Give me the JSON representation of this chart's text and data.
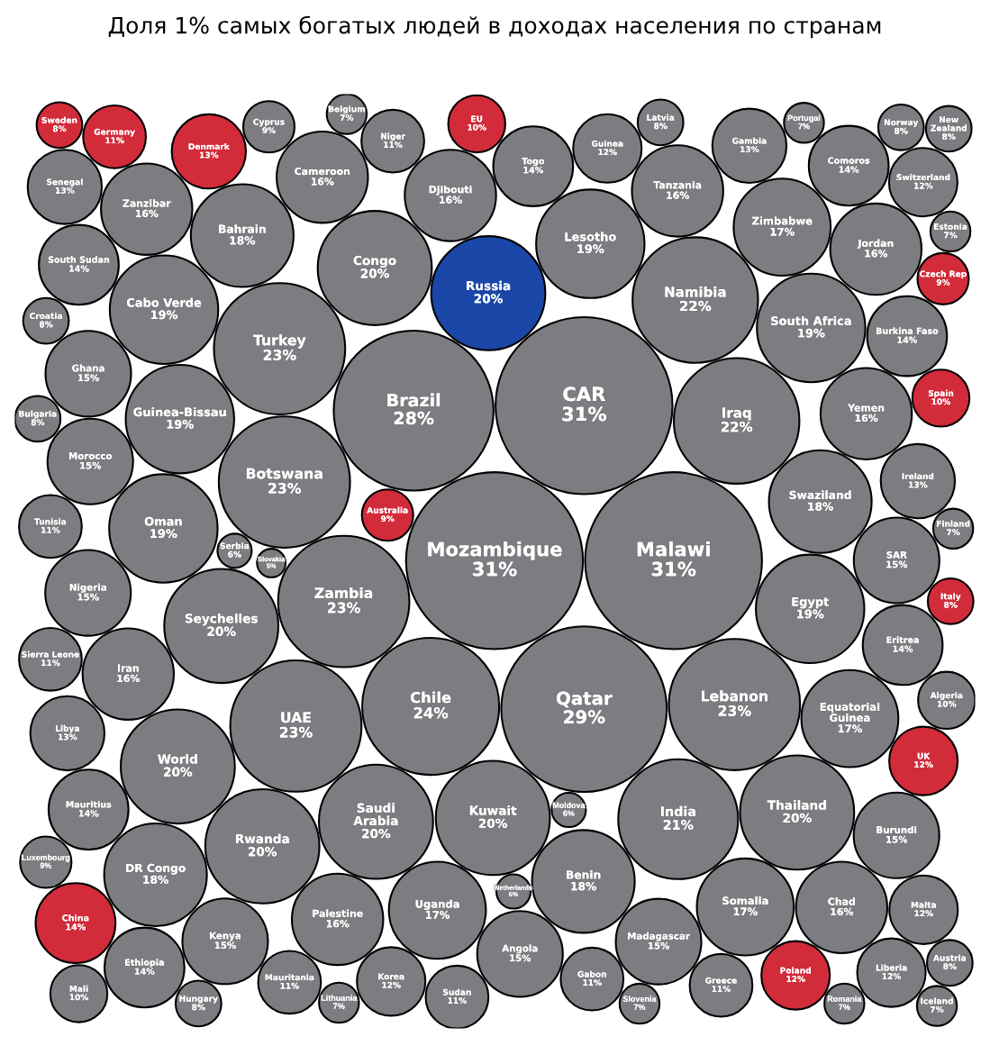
{
  "chart_data": {
    "type": "other",
    "title": "Доля 1% самых богатых людей в доходах населения по странам",
    "categories": [
      "Guinea-Bissau",
      "Norway",
      "Zambia",
      "Togo",
      "Mauritius",
      "Swaziland",
      "Madagascar",
      "Guinea",
      "Chad",
      "Kuwait",
      "Moldova",
      "Zanzibar",
      "Croatia",
      "Australia",
      "Iraq",
      "Eritrea",
      "Saudi\nArabia",
      "Sweden",
      "Iran",
      "Kenya",
      "SAR",
      "Latvia",
      "Mozambique",
      "UAE",
      "Zimbabwe",
      "Burundi",
      "New\nZealand",
      "Qatar",
      "Cyprus",
      "Seychelles",
      "Spain",
      "Denmark",
      "Mali",
      "Egypt",
      "Portugal",
      "EU",
      "Italy",
      "Lithuania",
      "Gabon",
      "Morocco",
      "Botswana",
      "Niger",
      "Mauritania",
      "Poland",
      "Russia",
      "Benin",
      "Palestine",
      "Chile",
      "Yemen",
      "Comoros",
      "South Africa",
      "Bahrain",
      "Malawi",
      "Rwanda",
      "Burkina Faso",
      "UK",
      "Ireland",
      "Czech Rep",
      "Libya",
      "Greece",
      "Slovenia",
      "Slovakia",
      "Estonia",
      "South Sudan",
      "Congo",
      "Germany",
      "Lesotho",
      "Oman",
      "Thailand",
      "Turkey",
      "Djibouti",
      "Equatorial\nGuinea",
      "Angola",
      "Luxembourg",
      "Tanzania",
      "Tunisia",
      "Gambia",
      "Austria",
      "Romania",
      "Nigeria",
      "Jordan",
      "Finland",
      "Senegal",
      "DR Congo",
      "World",
      "Lebanon",
      "Belgium",
      "Ethiopia",
      "Switzerland",
      "Somalia",
      "CAR",
      "Brazil",
      "Bulgaria",
      "Serbia",
      "China",
      "Netherlands",
      "Sierra Leone",
      "Hungary",
      "India",
      "Namibia",
      "Ghana",
      "Uganda",
      "Cabo Verde",
      "Malta",
      "Iceland",
      "Algeria",
      "Cameroon",
      "Liberia",
      "Sudan",
      "Korea"
    ],
    "values": [
      19,
      8,
      23,
      14,
      14,
      18,
      15,
      12,
      16,
      20,
      6,
      16,
      8,
      9,
      22,
      14,
      20,
      8,
      16,
      15,
      15,
      8,
      31,
      23,
      17,
      15,
      8,
      29,
      9,
      20,
      10,
      13,
      10,
      19,
      7,
      10,
      8,
      7,
      11,
      15,
      23,
      11,
      11,
      12,
      20,
      18,
      16,
      24,
      16,
      14,
      19,
      18,
      31,
      20,
      14,
      12,
      13,
      9,
      13,
      11,
      7,
      5,
      7,
      14,
      20,
      11,
      19,
      19,
      20,
      23,
      16,
      17,
      15,
      9,
      16,
      11,
      13,
      8,
      7,
      15,
      16,
      7,
      13,
      18,
      20,
      23,
      7,
      14,
      12,
      17,
      31,
      28,
      8,
      6,
      14,
      6,
      11,
      8,
      21,
      22,
      15,
      17,
      19,
      12,
      7,
      10,
      16,
      12,
      11,
      12
    ],
    "value_labels": [
      "19%",
      "8%",
      "23%",
      "14%",
      "14%",
      "18%",
      "15%",
      "12%",
      "16%",
      "20%",
      "6%",
      "16%",
      "8%",
      "9%",
      "22%",
      "14%",
      "20%",
      "8%",
      "16%",
      "15%",
      "15%",
      "8%",
      "31%",
      "23%",
      "17%",
      "15%",
      "8%",
      "29%",
      "9%",
      "20%",
      "10%",
      "13%",
      "10%",
      "19%",
      "7%",
      "10%",
      "8%",
      "7%",
      "11%",
      "15%",
      "23%",
      "11%",
      "11%",
      "12%",
      "20%",
      "18%",
      "16%",
      "24%",
      "16%",
      "14%",
      "19%",
      "18%",
      "31%",
      "20%",
      "14%",
      "12%",
      "13%",
      "9%",
      "13%",
      "11%",
      "7%",
      "5%",
      "7%",
      "14%",
      "20%",
      "11%",
      "19%",
      "19%",
      "20%",
      "23%",
      "16%",
      "17%",
      "15%",
      "9%",
      "16%",
      "11%",
      "13%",
      "8%",
      "7%",
      "15%",
      "16%",
      "7%",
      "13%",
      "18%",
      "20%",
      "23%",
      "7%",
      "14%",
      "12%",
      "17%",
      "31%",
      "28%",
      "8%",
      "6%",
      "14%",
      "6%",
      "11%",
      "8%",
      "21%",
      "22%",
      "15%",
      "17%",
      "19%",
      "12%",
      "7%",
      "10%",
      "16%",
      "12%",
      "11%",
      "12%"
    ],
    "colors": [
      "#7b7d80",
      "#7b7d80",
      "#7b7d80",
      "#7b7d80",
      "#7b7d80",
      "#7b7d80",
      "#7b7d80",
      "#7b7d80",
      "#7b7d80",
      "#7b7d80",
      "#7b7d80",
      "#7b7d80",
      "#7b7d80",
      "#d22b3a",
      "#7b7d80",
      "#7b7d80",
      "#7b7d80",
      "#d22b3a",
      "#7b7d80",
      "#7b7d80",
      "#7b7d80",
      "#7b7d80",
      "#7b7d80",
      "#7b7d80",
      "#7b7d80",
      "#7b7d80",
      "#7b7d80",
      "#7b7d80",
      "#7b7d80",
      "#7b7d80",
      "#d22b3a",
      "#d22b3a",
      "#7b7d80",
      "#7b7d80",
      "#7b7d80",
      "#d22b3a",
      "#d22b3a",
      "#7b7d80",
      "#7b7d80",
      "#7b7d80",
      "#7b7d80",
      "#7b7d80",
      "#7b7d80",
      "#d22b3a",
      "#1a47a8",
      "#7b7d80",
      "#7b7d80",
      "#7b7d80",
      "#7b7d80",
      "#7b7d80",
      "#7b7d80",
      "#7b7d80",
      "#7b7d80",
      "#7b7d80",
      "#7b7d80",
      "#d22b3a",
      "#7b7d80",
      "#d22b3a",
      "#7b7d80",
      "#7b7d80",
      "#7b7d80",
      "#7b7d80",
      "#7b7d80",
      "#7b7d80",
      "#7b7d80",
      "#d22b3a",
      "#7b7d80",
      "#7b7d80",
      "#7b7d80",
      "#7b7d80",
      "#7b7d80",
      "#7b7d80",
      "#7b7d80",
      "#7b7d80",
      "#7b7d80",
      "#7b7d80",
      "#7b7d80",
      "#7b7d80",
      "#7b7d80",
      "#7b7d80",
      "#7b7d80",
      "#7b7d80",
      "#7b7d80",
      "#7b7d80",
      "#7b7d80",
      "#7b7d80",
      "#7b7d80",
      "#7b7d80",
      "#7b7d80",
      "#7b7d80",
      "#7b7d80",
      "#7b7d80",
      "#7b7d80",
      "#7b7d80",
      "#d22b3a",
      "#7b7d80",
      "#7b7d80",
      "#7b7d80",
      "#7b7d80",
      "#7b7d80",
      "#7b7d80",
      "#7b7d80",
      "#7b7d80",
      "#7b7d80",
      "#7b7d80",
      "#7b7d80",
      "#7b7d80",
      "#7b7d80",
      "#7b7d80",
      "#7b7d80"
    ]
  }
}
